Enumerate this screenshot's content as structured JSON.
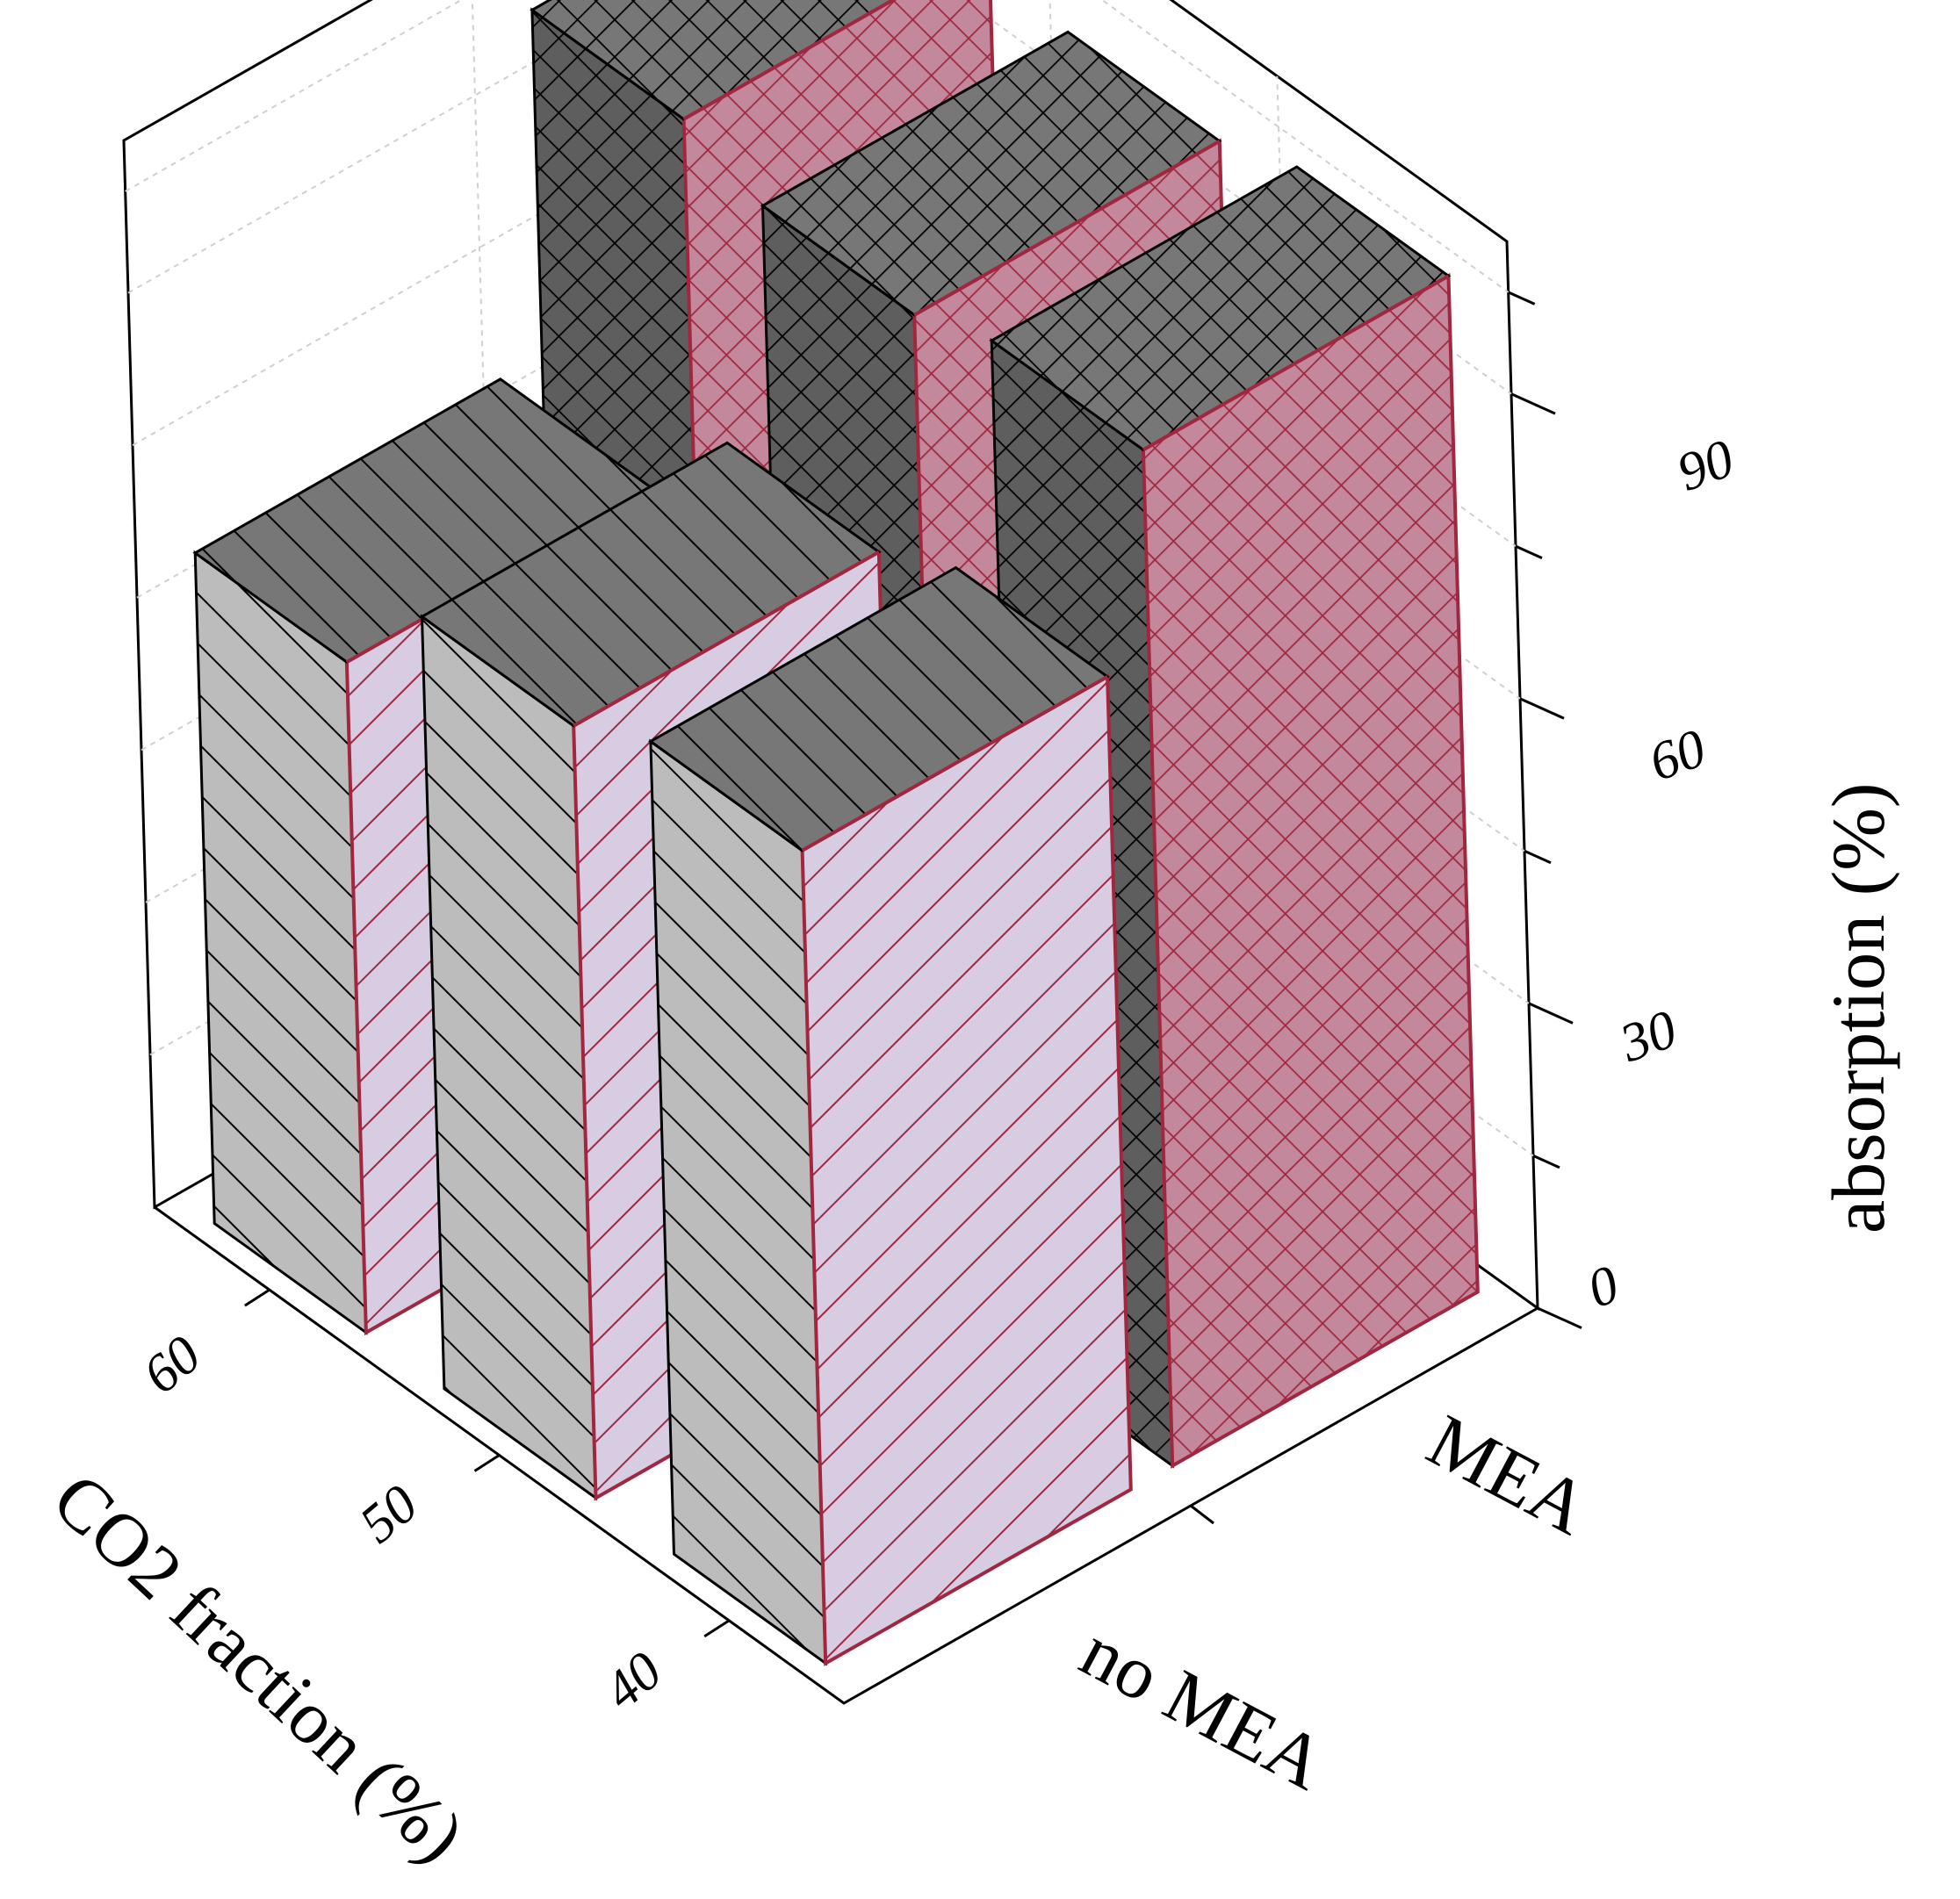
{
  "chart_data": {
    "type": "bar",
    "subtype": "3d-grouped",
    "z_axis": {
      "label": "absorption (%)",
      "range": [
        0,
        105
      ],
      "ticks": [
        0,
        30,
        60,
        90
      ],
      "minor_ticks": [
        15,
        45,
        75,
        100
      ]
    },
    "x_axis": {
      "label": "CO2 fraction (%)",
      "categories": [
        "60",
        "50",
        "40"
      ]
    },
    "y_axis": {
      "categories": [
        "no MEA",
        "MEA"
      ]
    },
    "series": [
      {
        "values": [
          66,
          76,
          80
        ],
        "pattern": "diagonal-hatch"
      },
      {
        "values": [
          100,
          97,
          100
        ],
        "pattern": "crosshatch"
      }
    ],
    "colors": {
      "edge_red": "#a0273f",
      "front_gray": "#bcbcbc",
      "top_gray": "#777777",
      "side_pink": "#d8cce2",
      "dark_gray": "#5e5e5e",
      "dark_pink": "#c3889b",
      "frame": "#000000",
      "gridline": "#d0d0d0"
    },
    "grid": true
  }
}
